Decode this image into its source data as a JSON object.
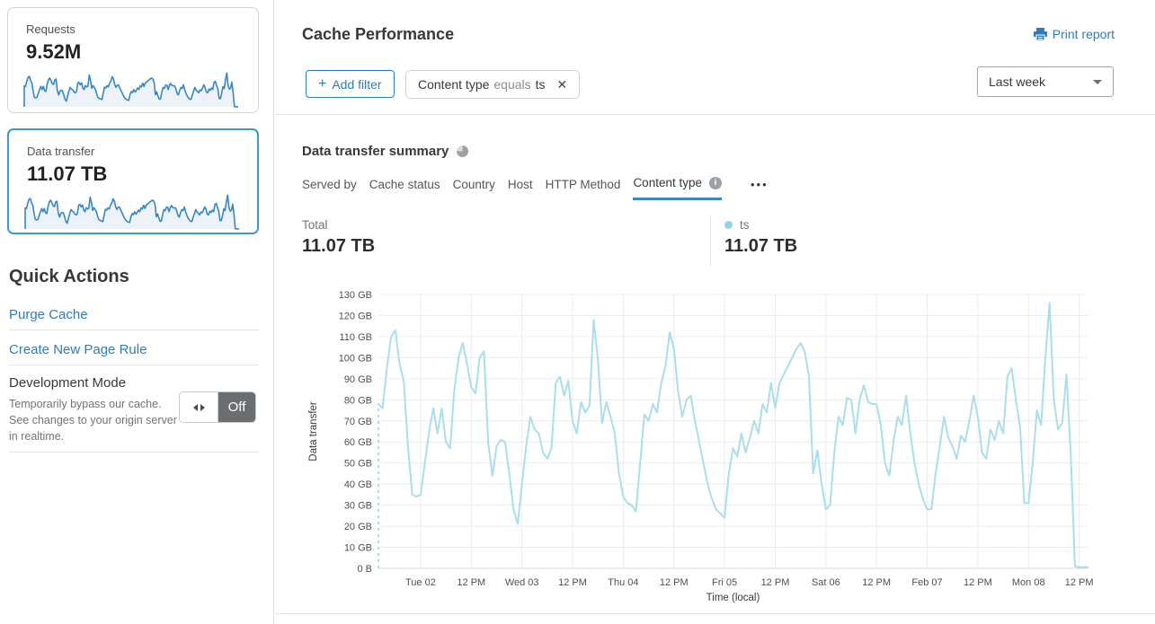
{
  "sidebar": {
    "cards": [
      {
        "label": "Requests",
        "value": "9.52M"
      },
      {
        "label": "Data transfer",
        "value": "11.07 TB"
      }
    ],
    "quick_actions": {
      "title": "Quick Actions",
      "links": [
        "Purge Cache",
        "Create New Page Rule"
      ],
      "dev_mode": {
        "title": "Development Mode",
        "description": "Temporarily bypass our cache. See changes to your origin server in realtime.",
        "toggle_label": "Off"
      }
    }
  },
  "header": {
    "title": "Cache Performance",
    "print_label": "Print report"
  },
  "toolbar": {
    "add_filter_label": "Add filter",
    "filter_chip": {
      "field": "Content type",
      "operator": "equals",
      "value": "ts"
    },
    "time_range": "Last week"
  },
  "summary": {
    "title": "Data transfer summary",
    "tabs": [
      "Served by",
      "Cache status",
      "Country",
      "Host",
      "HTTP Method",
      "Content type"
    ],
    "active_tab": "Content type",
    "total_label": "Total",
    "total_value": "11.07 TB",
    "series_label": "ts",
    "series_value": "11.07 TB"
  },
  "icons": {
    "add": "+",
    "close": "✕",
    "more": "•••",
    "info": "i"
  },
  "colors": {
    "accent": "#2e7cb8",
    "card_selected_border": "#3d97d1",
    "sparkline_stroke": "#3a86c0",
    "sparkline_fill": "#ecf2f8",
    "chart_line": "#abddeb",
    "legend_dot": "#95d2e6",
    "grid": "#ececef",
    "toggle_off_bg": "#6a6e71"
  },
  "chart_data": {
    "type": "line",
    "title": "Data transfer summary",
    "xlabel": "Time (local)",
    "ylabel": "Data transfer",
    "unit": "GB",
    "ylim": [
      0,
      130
    ],
    "grid": true,
    "y_ticks": [
      "0 B",
      "10 GB",
      "20 GB",
      "30 GB",
      "40 GB",
      "50 GB",
      "60 GB",
      "70 GB",
      "80 GB",
      "90 GB",
      "100 GB",
      "110 GB",
      "120 GB",
      "130 GB"
    ],
    "x_ticks": [
      "Tue 02",
      "12 PM",
      "Wed 03",
      "12 PM",
      "Thu 04",
      "12 PM",
      "Fri 05",
      "12 PM",
      "Sat 06",
      "12 PM",
      "Feb 07",
      "12 PM",
      "Mon 08",
      "12 PM"
    ],
    "x_tick_first_hour": 10,
    "x_tick_step_hours": 12,
    "total_hours": 168,
    "dashed_series_start": true,
    "series": [
      {
        "name": "ts",
        "color": "#abddeb",
        "values_gb": [
          78,
          76,
          95,
          110,
          113,
          97,
          89,
          58,
          35,
          34,
          35,
          50,
          65,
          76,
          64,
          76,
          60,
          57,
          85,
          100,
          107,
          97,
          86,
          83,
          100,
          103,
          60,
          44,
          58,
          61,
          60,
          45,
          28,
          21,
          40,
          58,
          72,
          66,
          64,
          55,
          52,
          57,
          88,
          91,
          82,
          89,
          70,
          64,
          79,
          74,
          77,
          118,
          99,
          69,
          79,
          72,
          64,
          45,
          34,
          31,
          30,
          27,
          50,
          73,
          70,
          78,
          74,
          88,
          96,
          112,
          104,
          84,
          72,
          80,
          82,
          70,
          60,
          50,
          40,
          33,
          28,
          26,
          24,
          45,
          57,
          53,
          64,
          55,
          62,
          70,
          64,
          78,
          74,
          88,
          76,
          88,
          92,
          96,
          100,
          104,
          107,
          103,
          91,
          45,
          56,
          40,
          28,
          30,
          55,
          72,
          68,
          81,
          80,
          64,
          80,
          87,
          79,
          78,
          78,
          68,
          50,
          44,
          60,
          72,
          68,
          82,
          64,
          50,
          40,
          33,
          28,
          28,
          45,
          58,
          72,
          62,
          58,
          52,
          63,
          60,
          70,
          82,
          72,
          55,
          52,
          66,
          61,
          70,
          64,
          91,
          95,
          80,
          67,
          31,
          31,
          50,
          75,
          68,
          100,
          126,
          80,
          66,
          69,
          92,
          55,
          1,
          0.5,
          0.5,
          0.5
        ]
      }
    ]
  }
}
